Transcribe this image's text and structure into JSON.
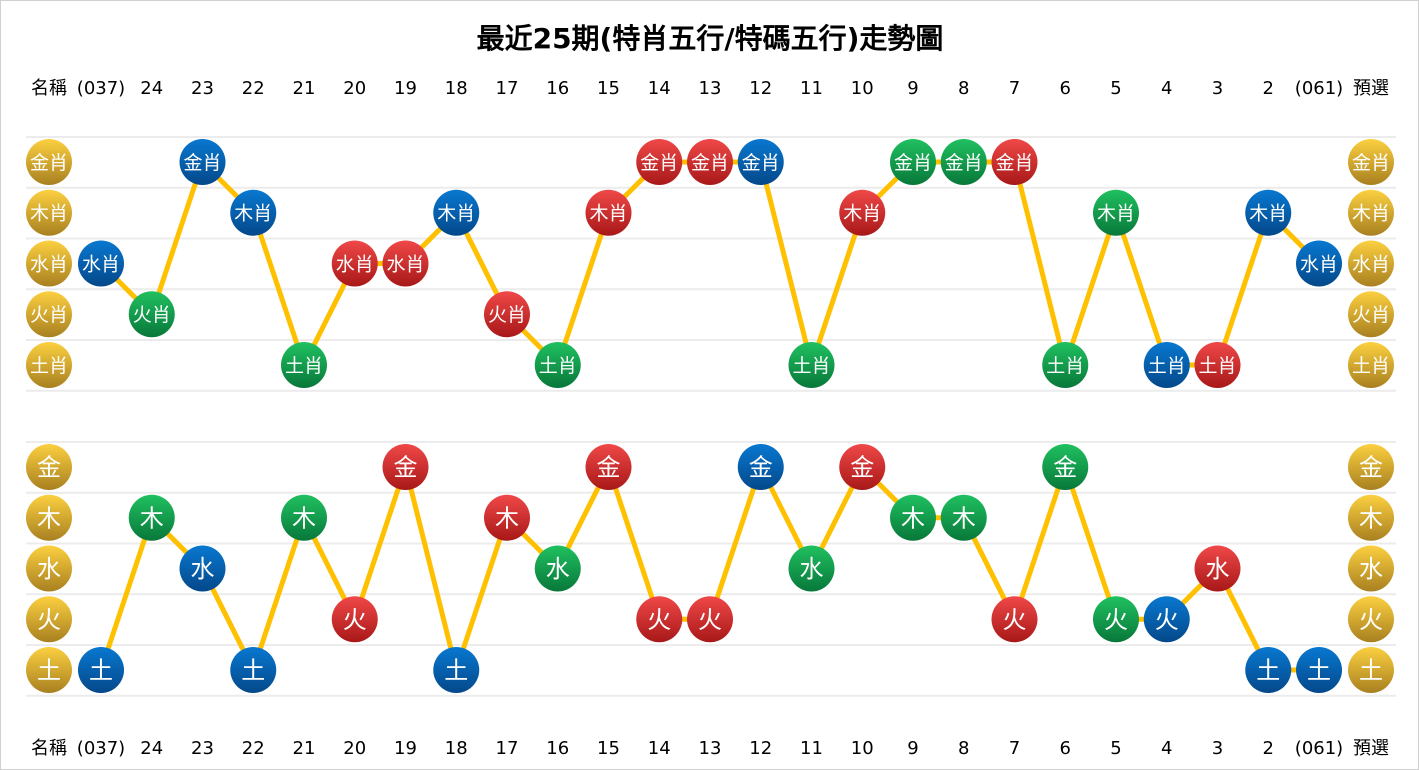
{
  "chart_data": [
    {
      "type": "line",
      "title": "最近25期(特肖五行/特碼五行)走勢圖",
      "header_left": "名稱",
      "header_right": "預選",
      "categories": [
        "(037)",
        "24",
        "23",
        "22",
        "21",
        "20",
        "19",
        "18",
        "17",
        "16",
        "15",
        "14",
        "13",
        "12",
        "11",
        "10",
        "9",
        "8",
        "7",
        "6",
        "5",
        "4",
        "3",
        "2",
        "(061)"
      ],
      "rows": [
        "金肖",
        "木肖",
        "水肖",
        "火肖",
        "土肖"
      ],
      "values": [
        "水肖",
        "火肖",
        "金肖",
        "木肖",
        "土肖",
        "水肖",
        "水肖",
        "木肖",
        "火肖",
        "土肖",
        "木肖",
        "金肖",
        "金肖",
        "金肖",
        "土肖",
        "木肖",
        "金肖",
        "金肖",
        "金肖",
        "土肖",
        "木肖",
        "土肖",
        "土肖",
        "木肖",
        "水肖"
      ],
      "colors": [
        "blue",
        "green",
        "blue",
        "blue",
        "green",
        "red",
        "red",
        "blue",
        "red",
        "green",
        "red",
        "red",
        "red",
        "blue",
        "green",
        "red",
        "green",
        "green",
        "red",
        "green",
        "green",
        "blue",
        "red",
        "blue",
        "blue"
      ]
    },
    {
      "type": "line",
      "categories": [
        "(037)",
        "24",
        "23",
        "22",
        "21",
        "20",
        "19",
        "18",
        "17",
        "16",
        "15",
        "14",
        "13",
        "12",
        "11",
        "10",
        "9",
        "8",
        "7",
        "6",
        "5",
        "4",
        "3",
        "2",
        "(061)"
      ],
      "rows": [
        "金",
        "木",
        "水",
        "火",
        "土"
      ],
      "values": [
        "土",
        "木",
        "水",
        "土",
        "木",
        "火",
        "金",
        "土",
        "木",
        "水",
        "金",
        "火",
        "火",
        "金",
        "水",
        "金",
        "木",
        "木",
        "火",
        "金",
        "火",
        "火",
        "水",
        "土",
        "土"
      ],
      "colors": [
        "blue",
        "green",
        "blue",
        "blue",
        "green",
        "red",
        "red",
        "blue",
        "red",
        "green",
        "red",
        "red",
        "red",
        "blue",
        "green",
        "red",
        "green",
        "green",
        "red",
        "green",
        "green",
        "blue",
        "red",
        "blue",
        "blue"
      ]
    }
  ],
  "palette": {
    "red": "#e03030",
    "green": "#10a850",
    "blue": "#0868b8",
    "gold": "#e8b830",
    "line": "#ffc000",
    "grid": "#ececec"
  }
}
